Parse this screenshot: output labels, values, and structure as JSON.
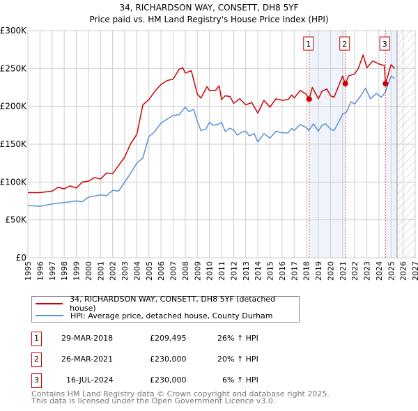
{
  "title": "34, RICHARDSON WAY, CONSETT, DH8 5YF",
  "subtitle": "Price paid vs. HM Land Registry's House Price Index (HPI)",
  "chart_data": {
    "type": "line",
    "title": "34, RICHARDSON WAY, CONSETT, DH8 5YF",
    "subtitle": "Price paid vs. HM Land Registry's House Price Index (HPI)",
    "xlim": [
      1995,
      2027
    ],
    "ylim": [
      0,
      300000
    ],
    "grid": true,
    "x_ticks": [
      "1995",
      "1996",
      "1997",
      "1998",
      "1999",
      "2000",
      "2001",
      "2002",
      "2003",
      "2004",
      "2005",
      "2006",
      "2007",
      "2008",
      "2009",
      "2010",
      "2011",
      "2012",
      "2013",
      "2014",
      "2015",
      "2016",
      "2017",
      "2018",
      "2019",
      "2020",
      "2021",
      "2022",
      "2023",
      "2024",
      "2025",
      "2026",
      "2027"
    ],
    "y_ticks": [
      {
        "v": 0,
        "label": "£0"
      },
      {
        "v": 50000,
        "label": "£50K"
      },
      {
        "v": 100000,
        "label": "£100K"
      },
      {
        "v": 150000,
        "label": "£150K"
      },
      {
        "v": 200000,
        "label": "£200K"
      },
      {
        "v": 250000,
        "label": "£250K"
      },
      {
        "v": 300000,
        "label": "£300K"
      }
    ],
    "series": [
      {
        "name": "34, RICHARDSON WAY, CONSETT, DH8 5YF (detached house)",
        "color": "#cc0000",
        "x": [
          1995,
          1996,
          1997,
          1997.5,
          1998,
          1998.5,
          1999,
          1999.5,
          2000,
          2000.5,
          2001,
          2001.5,
          2002,
          2002.5,
          2003,
          2003.5,
          2004,
          2004.5,
          2005,
          2005.5,
          2006,
          2006.5,
          2007,
          2007.5,
          2007.8,
          2008,
          2008.5,
          2009,
          2009.3,
          2009.8,
          2010,
          2010.5,
          2010.8,
          2011,
          2011.3,
          2011.7,
          2012,
          2012.5,
          2013,
          2013.5,
          2014,
          2014.5,
          2015,
          2015.5,
          2016,
          2016.5,
          2016.8,
          2017,
          2017.5,
          2018,
          2018.24,
          2018.5,
          2019,
          2019.3,
          2019.7,
          2020,
          2020.3,
          2020.7,
          2021,
          2021.23,
          2021.5,
          2022,
          2022.3,
          2022.7,
          2023,
          2023.5,
          2024,
          2024.45,
          2024.54,
          2025,
          2025.3
        ],
        "y": [
          86000,
          86000,
          88000,
          93000,
          91000,
          95000,
          92000,
          100000,
          101000,
          106000,
          104000,
          112000,
          111000,
          122000,
          133000,
          151000,
          163000,
          202000,
          209000,
          220000,
          229000,
          234000,
          236000,
          249000,
          251000,
          244000,
          247000,
          216000,
          211000,
          226000,
          221000,
          221000,
          227000,
          209000,
          214000,
          213000,
          204000,
          210000,
          202000,
          205000,
          191000,
          208000,
          199000,
          210000,
          208000,
          209000,
          215000,
          211000,
          221000,
          216000,
          209495,
          225000,
          210000,
          220000,
          223000,
          214000,
          212000,
          228000,
          240000,
          230000,
          240000,
          243000,
          250000,
          268000,
          251000,
          260000,
          256000,
          254000,
          230000,
          255000,
          250000
        ]
      },
      {
        "name": "HPI: Average price, detached house, County Durham",
        "color": "#5b8fd4",
        "x": [
          1995,
          1996,
          1997,
          1998,
          1999,
          1999.5,
          2000,
          2001,
          2001.5,
          2002,
          2002.5,
          2003,
          2003.5,
          2004,
          2004.5,
          2005,
          2005.5,
          2006,
          2006.5,
          2007,
          2007.5,
          2008,
          2008.3,
          2008.7,
          2009,
          2009.3,
          2009.7,
          2010,
          2010.3,
          2010.7,
          2011,
          2011.3,
          2011.7,
          2012,
          2012.3,
          2012.7,
          2013,
          2013.3,
          2013.7,
          2014,
          2014.5,
          2015,
          2015.5,
          2016,
          2016.5,
          2016.8,
          2017,
          2017.5,
          2018,
          2018.2,
          2018.6,
          2019,
          2019.3,
          2019.6,
          2020,
          2020.3,
          2020.7,
          2021,
          2021.3,
          2021.7,
          2022,
          2022.5,
          2022.9,
          2023.3,
          2023.8,
          2024.2,
          2024.5,
          2025,
          2025.3
        ],
        "y": [
          69000,
          68000,
          71000,
          73000,
          75000,
          74000,
          80000,
          83000,
          82000,
          89000,
          88000,
          100000,
          112000,
          125000,
          132000,
          160000,
          167000,
          178000,
          183000,
          188000,
          189000,
          199000,
          193000,
          196000,
          180000,
          168000,
          170000,
          179000,
          175000,
          176000,
          179000,
          167000,
          171000,
          169000,
          162000,
          166000,
          167000,
          161000,
          164000,
          153000,
          164000,
          158000,
          167000,
          165000,
          165000,
          171000,
          168000,
          176000,
          172000,
          168000,
          177000,
          167000,
          175000,
          177000,
          170000,
          168000,
          180000,
          190000,
          192000,
          206000,
          203000,
          214000,
          224000,
          210000,
          217000,
          212000,
          218000,
          240000,
          237000
        ]
      }
    ],
    "sales": [
      {
        "label": "1",
        "x": 2018.24,
        "price": 209495
      },
      {
        "label": "2",
        "x": 2021.23,
        "price": 230000
      },
      {
        "label": "3",
        "x": 2024.54,
        "price": 230000
      }
    ],
    "shaded_ranges": [
      [
        2018.24,
        2021.23
      ],
      [
        2024.54,
        2025.5
      ]
    ],
    "forecast_hatch": [
      2025.5,
      2027
    ]
  },
  "legend": [
    {
      "label": "34, RICHARDSON WAY, CONSETT, DH8 5YF (detached house)",
      "color": "#cc0000"
    },
    {
      "label": "HPI: Average price, detached house, County Durham",
      "color": "#5b8fd4"
    }
  ],
  "sales_table": [
    {
      "num": "1",
      "date": "29-MAR-2018",
      "price": "£209,495",
      "hpi": "26% ↑ HPI"
    },
    {
      "num": "2",
      "date": "26-MAR-2021",
      "price": "£230,000",
      "hpi": "20% ↑ HPI"
    },
    {
      "num": "3",
      "date": "16-JUL-2024",
      "price": "£230,000",
      "hpi": "6% ↑ HPI"
    }
  ],
  "footer": {
    "line1": "Contains HM Land Registry data © Crown copyright and database right 2025.",
    "line2": "This data is licensed under the Open Government Licence v3.0."
  }
}
